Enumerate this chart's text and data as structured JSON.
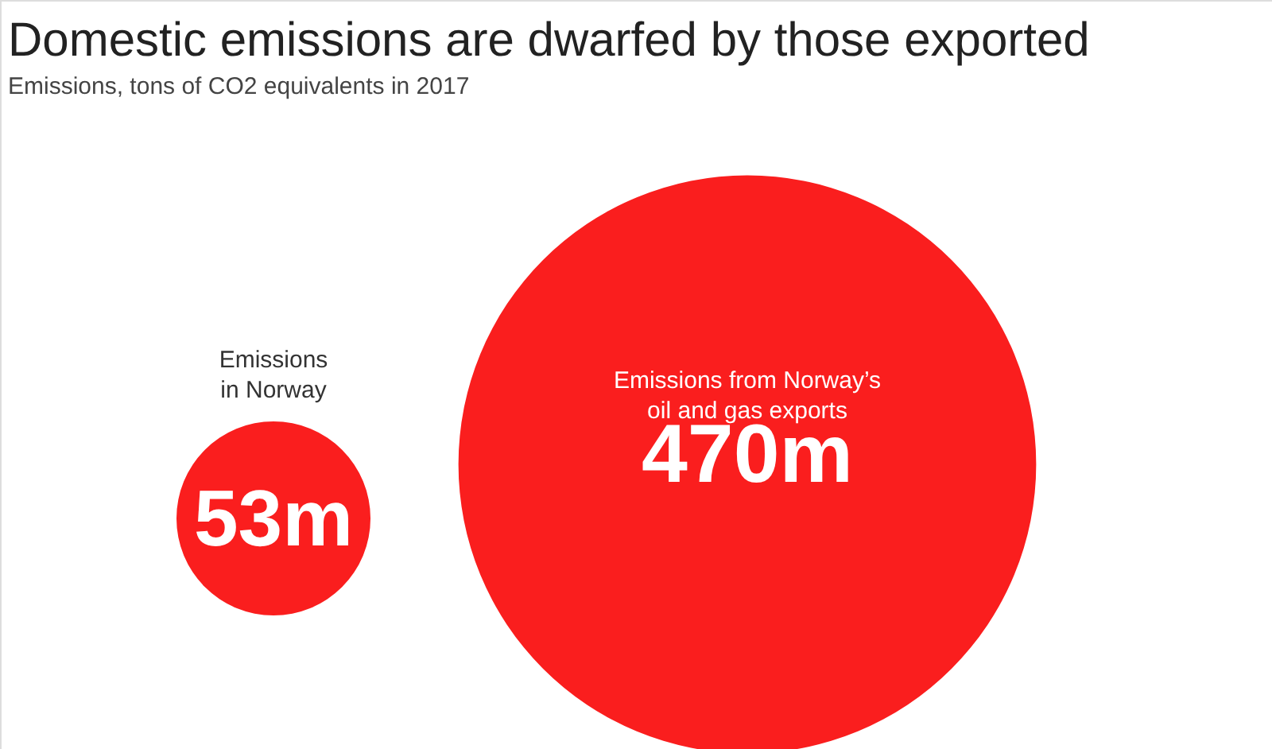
{
  "chart_data": {
    "type": "other",
    "title": "Domestic emissions are dwarfed by those exported",
    "subtitle": "Emissions, tons of CO2 equivalents in 2017",
    "categories": [
      "Emissions in Norway",
      "Emissions from Norway’s oil and gas exports"
    ],
    "values": [
      53,
      470
    ],
    "value_labels": [
      "53m",
      "470m"
    ],
    "colors": [
      "#fa1e1e",
      "#fa1e1e"
    ]
  }
}
